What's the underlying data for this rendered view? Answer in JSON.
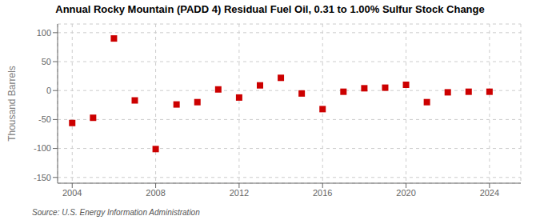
{
  "chart_data": {
    "type": "scatter",
    "title": "Annual Rocky Mountain (PADD 4) Residual Fuel Oil, 0.31 to 1.00% Sulfur Stock Change",
    "ylabel": "Thousand Barrels",
    "annotations": [
      "Source: U.S. Energy Information Administration"
    ],
    "x": [
      2004,
      2005,
      2006,
      2007,
      2008,
      2009,
      2010,
      2011,
      2012,
      2013,
      2014,
      2015,
      2016,
      2017,
      2018,
      2019,
      2020,
      2021,
      2022,
      2023,
      2024
    ],
    "values": [
      -56,
      -47,
      90,
      -17,
      -101,
      -24,
      -20,
      2,
      -12,
      9,
      22,
      -5,
      -32,
      -2,
      4,
      5,
      10,
      -20,
      -3,
      -2,
      -2
    ],
    "color": "#cc0000",
    "marker": "square",
    "xlim": [
      2003.3,
      2025.5
    ],
    "xticks": [
      2004,
      2008,
      2012,
      2016,
      2020,
      2024
    ],
    "ylim": [
      -160,
      115
    ],
    "yticks": [
      -150,
      -100,
      -50,
      0,
      50,
      100
    ],
    "grid": true
  }
}
